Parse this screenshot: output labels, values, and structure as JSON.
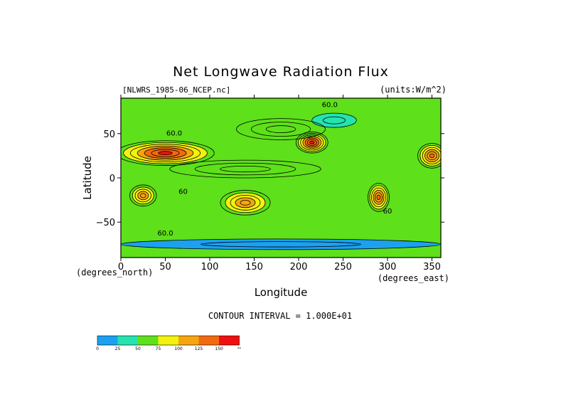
{
  "chart_data": {
    "type": "heatmap",
    "title": "Net Longwave Radiation Flux",
    "source_label": "[NLWRS_1985-06_NCEP.nc]",
    "units_label": "(units:W/m^2)",
    "xlabel": "Longitude",
    "ylabel": "Latitude",
    "x_unit_label": "(degrees_east)",
    "y_unit_label": "(degrees_north)",
    "xlim": [
      0,
      360
    ],
    "ylim": [
      -90,
      90
    ],
    "x_ticks": [
      0,
      50,
      100,
      150,
      200,
      250,
      300,
      350
    ],
    "y_ticks": [
      -50,
      0,
      50
    ],
    "contour_interval_label": "CONTOUR INTERVAL = 1.000E+01",
    "contour_labels": [
      {
        "lon": 60,
        "lat": 48,
        "text": "60.0"
      },
      {
        "lon": 300,
        "lat": -40,
        "text": "60"
      },
      {
        "lon": 50,
        "lat": -65,
        "text": "60.0"
      },
      {
        "lon": 235,
        "lat": 80,
        "text": "60.0"
      },
      {
        "lon": 70,
        "lat": -18,
        "text": "60"
      }
    ],
    "regions": [
      {
        "lon": 50,
        "lat": 28,
        "rx": 55,
        "ry": 14,
        "level": 6
      },
      {
        "lon": 215,
        "lat": 40,
        "rx": 18,
        "ry": 12,
        "level": 6
      },
      {
        "lon": 350,
        "lat": 25,
        "rx": 16,
        "ry": 14,
        "level": 5
      },
      {
        "lon": 25,
        "lat": -20,
        "rx": 15,
        "ry": 12,
        "level": 4
      },
      {
        "lon": 140,
        "lat": -28,
        "rx": 28,
        "ry": 14,
        "level": 4
      },
      {
        "lon": 290,
        "lat": -22,
        "rx": 12,
        "ry": 16,
        "level": 5
      },
      {
        "lon": 180,
        "lat": 55,
        "rx": 50,
        "ry": 12,
        "level": 2
      },
      {
        "lon": 140,
        "lat": 10,
        "rx": 85,
        "ry": 10,
        "level": 2
      },
      {
        "lon": 240,
        "lat": 65,
        "rx": 25,
        "ry": 8,
        "level": 1
      },
      {
        "lon": 180,
        "lat": -75,
        "rx": 180,
        "ry": 6,
        "level": 0
      }
    ],
    "colorbar": {
      "colors": [
        "#1ba1f0",
        "#24e3b0",
        "#5ee01a",
        "#f2f20c",
        "#f5a60f",
        "#f26a0f",
        "#f20f0f"
      ],
      "tick_labels": [
        "0",
        "25",
        "50",
        "75",
        "100",
        "125",
        "150",
        "ᵃᵃ"
      ]
    }
  }
}
